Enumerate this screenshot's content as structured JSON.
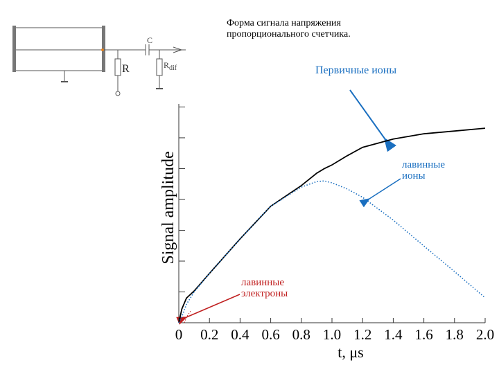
{
  "chart_data": {
    "type": "line",
    "title": "Форма сигнала напряжения пропорционального счетчика.",
    "x_label": "t, μs",
    "y_label": "Signal amplitude",
    "x": [
      0,
      0.02,
      0.05,
      0.1,
      0.2,
      0.4,
      0.6,
      0.8,
      0.9,
      0.95,
      1.0,
      1.1,
      1.2,
      1.4,
      1.6,
      1.8,
      2.0
    ],
    "series": [
      {
        "color": "#000000",
        "style": "solid",
        "values": [
          0,
          0.45,
          0.8,
          1.03,
          1.6,
          2.72,
          3.78,
          4.45,
          4.85,
          5.0,
          5.12,
          5.42,
          5.69,
          5.96,
          6.13,
          6.22,
          6.31
        ]
      },
      {
        "color": "#1a6fc0",
        "style": "dotted",
        "values": [
          0,
          0.2,
          0.6,
          1.0,
          1.6,
          2.72,
          3.78,
          4.4,
          4.58,
          4.6,
          4.54,
          4.34,
          4.07,
          3.33,
          2.49,
          1.66,
          0.81
        ]
      }
    ],
    "xlim": [
      0,
      2.0
    ],
    "ylim": [
      0,
      7.1
    ],
    "xticks": [
      0,
      0.2,
      0.4,
      0.6,
      0.8,
      {
        "value": 1,
        "label": "1.0"
      },
      1.2,
      1.4,
      1.6,
      1.8,
      {
        "value": 2,
        "label": "2.0"
      }
    ],
    "yticks": [
      1,
      2,
      3,
      4,
      5,
      6,
      7
    ],
    "annotations": [
      "Первичные ионы",
      "лавинные ионы",
      "лавинные электроны"
    ]
  },
  "circuit": {
    "capacitor": "C",
    "resistor": "R",
    "rdif": "R",
    "rdif_sub": "dif"
  }
}
